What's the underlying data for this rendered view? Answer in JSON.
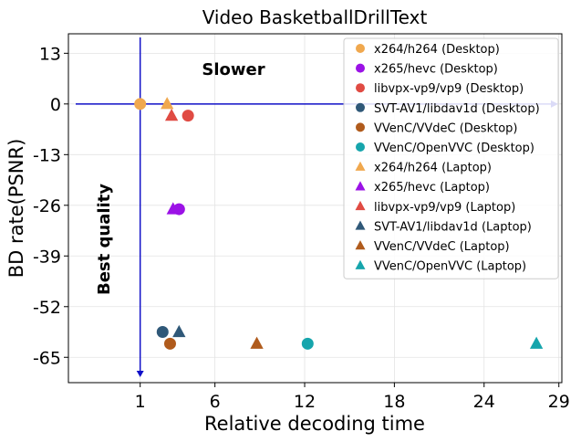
{
  "chart_data": {
    "type": "scatter",
    "title": "Video BasketballDrillText",
    "xlabel": "Relative decoding time",
    "ylabel": "BD rate(PSNR)",
    "xlim": [
      -3.8,
      29.2
    ],
    "ylim": [
      -71.5,
      18
    ],
    "xticks": [
      1,
      6,
      12,
      18,
      24,
      29
    ],
    "yticks": [
      13,
      0,
      -13,
      -26,
      -39,
      -52,
      -65
    ],
    "grid": true,
    "legend_position": "top-right",
    "annotations": [
      "Slower",
      "Best quality"
    ],
    "series": [
      {
        "name": "x264/h264 (Desktop)",
        "marker": "circle",
        "color": "#f0a84e",
        "points": [
          [
            1.0,
            0.0
          ]
        ]
      },
      {
        "name": "x265/hevc (Desktop)",
        "marker": "circle",
        "color": "#9b12e6",
        "points": [
          [
            3.6,
            -27.0
          ]
        ]
      },
      {
        "name": "libvpx-vp9/vp9 (Desktop)",
        "marker": "circle",
        "color": "#e04b43",
        "points": [
          [
            4.2,
            -3.0
          ]
        ]
      },
      {
        "name": "SVT-AV1/libdav1d (Desktop)",
        "marker": "circle",
        "color": "#2f5878",
        "points": [
          [
            2.5,
            -58.5
          ]
        ]
      },
      {
        "name": "VVenC/VVdeC (Desktop)",
        "marker": "circle",
        "color": "#b05b1c",
        "points": [
          [
            3.0,
            -61.5
          ]
        ]
      },
      {
        "name": "VVenC/OpenVVC (Desktop)",
        "marker": "circle",
        "color": "#16a5ac",
        "points": [
          [
            12.2,
            -61.5
          ]
        ]
      },
      {
        "name": "x264/h264 (Laptop)",
        "marker": "triangle",
        "color": "#f0a84e",
        "points": [
          [
            2.8,
            0.0
          ]
        ]
      },
      {
        "name": "x265/hevc (Laptop)",
        "marker": "triangle",
        "color": "#9b12e6",
        "points": [
          [
            3.2,
            -27.0
          ]
        ]
      },
      {
        "name": "libvpx-vp9/vp9 (Laptop)",
        "marker": "triangle",
        "color": "#e04b43",
        "points": [
          [
            3.1,
            -3.0
          ]
        ]
      },
      {
        "name": "SVT-AV1/libdav1d (Laptop)",
        "marker": "triangle",
        "color": "#2f5878",
        "points": [
          [
            3.6,
            -58.5
          ]
        ]
      },
      {
        "name": "VVenC/VVdeC (Laptop)",
        "marker": "triangle",
        "color": "#b05b1c",
        "points": [
          [
            8.8,
            -61.5
          ]
        ]
      },
      {
        "name": "VVenC/OpenVVC (Laptop)",
        "marker": "triangle",
        "color": "#16a5ac",
        "points": [
          [
            27.5,
            -61.5
          ]
        ]
      }
    ],
    "reference_lines": {
      "vertical_x": 1,
      "horizontal_y": 0,
      "color": "#1010c8"
    }
  }
}
